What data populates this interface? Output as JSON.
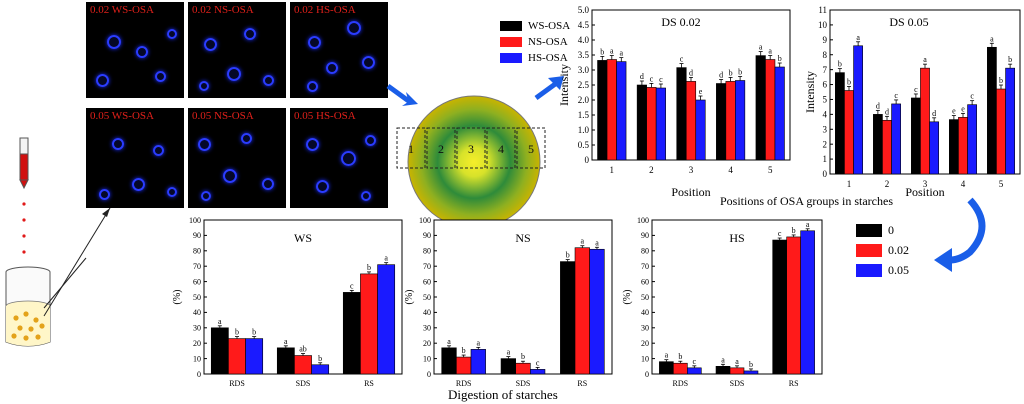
{
  "micrographs": [
    {
      "label": "0.02 WS-OSA"
    },
    {
      "label": "0.02 NS-OSA"
    },
    {
      "label": "0.02 HS-OSA"
    },
    {
      "label": "0.05 WS-OSA"
    },
    {
      "label": "0.05 NS-OSA"
    },
    {
      "label": "0.05 HS-OSA"
    }
  ],
  "granule": {
    "zones": [
      "1",
      "2",
      "3",
      "4",
      "5"
    ],
    "colors": {
      "outer": "#c9b400",
      "inner": "#2e8b3a",
      "center": "#f4ea2a"
    }
  },
  "top_legend": {
    "entries": [
      {
        "name": "WS-OSA",
        "color": "#000000"
      },
      {
        "name": "NS-OSA",
        "color": "#ff1a1a"
      },
      {
        "name": "HS-OSA",
        "color": "#1a1aff"
      }
    ]
  },
  "positions_title": "Positions of OSA groups in starches",
  "bottom_legend": {
    "entries": [
      {
        "name": "0",
        "color": "#000000"
      },
      {
        "name": "0.02",
        "color": "#ff1a1a"
      },
      {
        "name": "0.05",
        "color": "#1a1aff"
      }
    ]
  },
  "digestion_title": "Digestion of starches",
  "chart_data": [
    {
      "id": "ds002",
      "type": "bar",
      "title": "DS 0.02",
      "xlabel": "Position",
      "ylabel": "Intensity",
      "categories": [
        "1",
        "2",
        "3",
        "4",
        "5"
      ],
      "ylim": [
        0,
        5
      ],
      "yticks": [
        "0",
        "0.5",
        "1.0",
        "1.5",
        "2.0",
        "2.5",
        "3.0",
        "3.5",
        "4.0",
        "4.5",
        "5.0"
      ],
      "series": [
        {
          "name": "WS-OSA",
          "color": "#000000",
          "values": [
            3.32,
            2.5,
            3.08,
            2.55,
            3.48
          ],
          "letters": [
            "b",
            "d",
            "c",
            "d",
            "a"
          ]
        },
        {
          "name": "NS-OSA",
          "color": "#ff1a1a",
          "values": [
            3.35,
            2.42,
            2.62,
            2.62,
            3.35
          ],
          "letters": [
            "a",
            "c",
            "d",
            "b",
            "a"
          ]
        },
        {
          "name": "HS-OSA",
          "color": "#1a1aff",
          "values": [
            3.28,
            2.4,
            2.0,
            2.65,
            3.1
          ],
          "letters": [
            "a",
            "c",
            "e",
            "b",
            "b"
          ]
        }
      ]
    },
    {
      "id": "ds005",
      "type": "bar",
      "title": "DS 0.05",
      "xlabel": "Position",
      "ylabel": "Intensity",
      "categories": [
        "1",
        "2",
        "3",
        "4",
        "5"
      ],
      "ylim": [
        0,
        11
      ],
      "yticks": [
        "0",
        "1",
        "2",
        "3",
        "4",
        "5",
        "6",
        "7",
        "8",
        "9",
        "10",
        "11"
      ],
      "series": [
        {
          "name": "WS-OSA",
          "color": "#000000",
          "values": [
            6.8,
            4.0,
            5.1,
            3.65,
            8.5
          ],
          "letters": [
            "b",
            "d",
            "c",
            "e",
            "a"
          ]
        },
        {
          "name": "NS-OSA",
          "color": "#ff1a1a",
          "values": [
            5.6,
            3.6,
            7.1,
            3.8,
            5.7
          ],
          "letters": [
            "b",
            "d",
            "a",
            "e",
            "b"
          ]
        },
        {
          "name": "HS-OSA",
          "color": "#1a1aff",
          "values": [
            8.6,
            4.7,
            3.5,
            4.65,
            7.1
          ],
          "letters": [
            "a",
            "c",
            "d",
            "c",
            "b"
          ]
        }
      ]
    },
    {
      "id": "ws",
      "type": "bar",
      "title": "WS",
      "xlabel": "",
      "ylabel": "(%)",
      "categories": [
        "RDS",
        "SDS",
        "RS"
      ],
      "ylim": [
        0,
        100
      ],
      "yticks": [
        "0",
        "10",
        "20",
        "30",
        "40",
        "50",
        "60",
        "70",
        "80",
        "90",
        "100"
      ],
      "series": [
        {
          "name": "0",
          "color": "#000000",
          "values": [
            30,
            17,
            53
          ],
          "letters": [
            "a",
            "a",
            "c"
          ]
        },
        {
          "name": "0.02",
          "color": "#ff1a1a",
          "values": [
            23,
            12,
            65
          ],
          "letters": [
            "b",
            "ab",
            "b"
          ]
        },
        {
          "name": "0.05",
          "color": "#1a1aff",
          "values": [
            23,
            6,
            71
          ],
          "letters": [
            "b",
            "b",
            "a"
          ]
        }
      ]
    },
    {
      "id": "ns",
      "type": "bar",
      "title": "NS",
      "xlabel": "",
      "ylabel": "(%)",
      "categories": [
        "RDS",
        "SDS",
        "RS"
      ],
      "ylim": [
        0,
        100
      ],
      "yticks": [
        "0",
        "10",
        "20",
        "30",
        "40",
        "50",
        "60",
        "70",
        "80",
        "90",
        "100"
      ],
      "series": [
        {
          "name": "0",
          "color": "#000000",
          "values": [
            17,
            10,
            73
          ],
          "letters": [
            "a",
            "a",
            "b"
          ]
        },
        {
          "name": "0.02",
          "color": "#ff1a1a",
          "values": [
            11,
            7,
            82
          ],
          "letters": [
            "b",
            "b",
            "a"
          ]
        },
        {
          "name": "0.05",
          "color": "#1a1aff",
          "values": [
            16,
            3,
            81
          ],
          "letters": [
            "a",
            "c",
            "a"
          ]
        }
      ]
    },
    {
      "id": "hs",
      "type": "bar",
      "title": "HS",
      "xlabel": "",
      "ylabel": "(%)",
      "categories": [
        "RDS",
        "SDS",
        "RS"
      ],
      "ylim": [
        0,
        100
      ],
      "yticks": [
        "0",
        "10",
        "20",
        "30",
        "40",
        "50",
        "60",
        "70",
        "80",
        "90",
        "100"
      ],
      "series": [
        {
          "name": "0",
          "color": "#000000",
          "values": [
            8,
            5,
            87
          ],
          "letters": [
            "a",
            "a",
            "c"
          ]
        },
        {
          "name": "0.02",
          "color": "#ff1a1a",
          "values": [
            7,
            4,
            89
          ],
          "letters": [
            "b",
            "a",
            "b"
          ]
        },
        {
          "name": "0.05",
          "color": "#1a1aff",
          "values": [
            4,
            2,
            93
          ],
          "letters": [
            "c",
            "b",
            "a"
          ]
        }
      ]
    }
  ]
}
